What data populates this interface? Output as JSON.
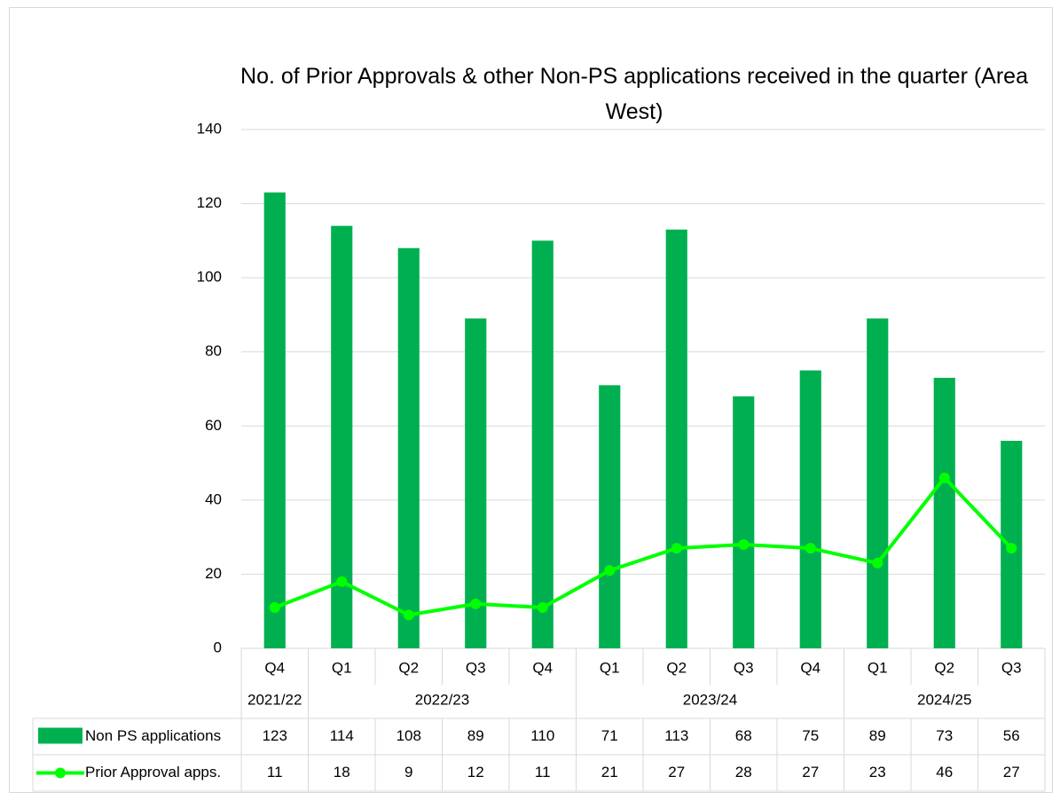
{
  "chart_data": {
    "type": "bar_line_table",
    "title": "No. of Prior Approvals & other Non-PS applications received in the quarter (Area West)",
    "categories": [
      "Q4",
      "Q1",
      "Q2",
      "Q3",
      "Q4",
      "Q1",
      "Q2",
      "Q3",
      "Q4",
      "Q1",
      "Q2",
      "Q3"
    ],
    "category_groups": [
      "2021/22",
      "2022/23",
      "2022/23",
      "2022/23",
      "2022/23",
      "2023/24",
      "2023/24",
      "2023/24",
      "2023/24",
      "2024/25",
      "2024/25",
      "2024/25"
    ],
    "series": [
      {
        "name": "Non PS applications",
        "type": "bar",
        "color": "#00b050",
        "values": [
          123,
          114,
          108,
          89,
          110,
          71,
          113,
          68,
          75,
          89,
          73,
          56
        ]
      },
      {
        "name": "Prior Approval apps.",
        "type": "line",
        "color": "#00ff00",
        "values": [
          11,
          18,
          9,
          12,
          11,
          21,
          27,
          28,
          27,
          23,
          46,
          27
        ]
      }
    ],
    "ylim": [
      0,
      140
    ],
    "yticks": [
      0,
      20,
      40,
      60,
      80,
      100,
      120,
      140
    ],
    "grid": true
  }
}
